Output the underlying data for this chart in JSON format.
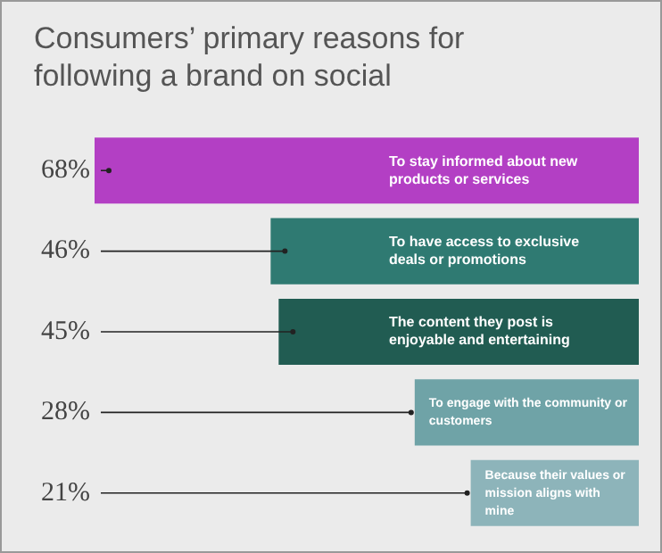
{
  "chart_data": {
    "type": "bar",
    "orientation": "horizontal",
    "title": "Consumers’ primary reasons for following a brand on social",
    "categories": [
      "To stay informed about new products or services",
      "To have access to exclusive deals or promotions",
      "The content they post is enjoyable and entertaining",
      "To engage with the community or customers",
      "Because their values or mission aligns with mine"
    ],
    "values": [
      68,
      46,
      45,
      28,
      21
    ],
    "value_labels": [
      "68%",
      "46%",
      "45%",
      "28%",
      "21%"
    ],
    "colors": [
      "#b33fc4",
      "#2f7a72",
      "#215c52",
      "#6fa3a7",
      "#8db4ba"
    ],
    "legend": false
  }
}
